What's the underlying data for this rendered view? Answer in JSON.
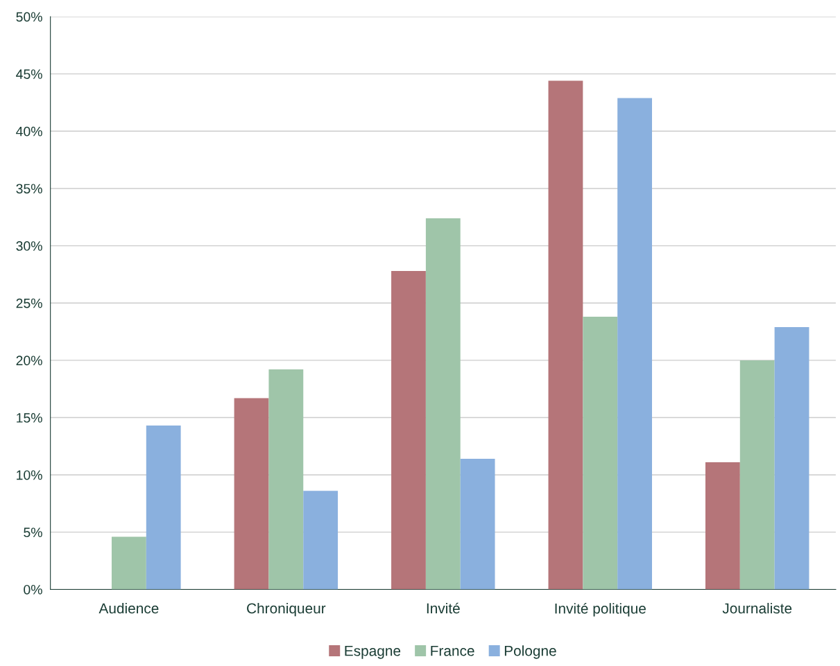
{
  "chart_data": {
    "type": "bar",
    "categories": [
      "Audience",
      "Chroniqueur",
      "Invité",
      "Invité politique",
      "Journaliste"
    ],
    "series": [
      {
        "name": "Espagne",
        "color": "#b57579",
        "values": [
          0,
          16.7,
          27.8,
          44.4,
          11.1
        ]
      },
      {
        "name": "France",
        "color": "#9fc5a9",
        "values": [
          4.6,
          19.2,
          32.4,
          23.8,
          20.0
        ]
      },
      {
        "name": "Pologne",
        "color": "#8ab0de",
        "values": [
          14.3,
          8.6,
          11.4,
          42.9,
          22.9
        ]
      }
    ],
    "ylim": [
      0,
      50
    ],
    "yticks": [
      {
        "value": 0,
        "label": "0%"
      },
      {
        "value": 5,
        "label": "5%"
      },
      {
        "value": 10,
        "label": "10%"
      },
      {
        "value": 15,
        "label": "15%"
      },
      {
        "value": 20,
        "label": "20%"
      },
      {
        "value": 25,
        "label": "25%"
      },
      {
        "value": 30,
        "label": "30%"
      },
      {
        "value": 35,
        "label": "35%"
      },
      {
        "value": 40,
        "label": "40%"
      },
      {
        "value": 45,
        "label": "45%"
      },
      {
        "value": 50,
        "label": "50%"
      }
    ],
    "grid": "y",
    "legend": "bottom"
  }
}
